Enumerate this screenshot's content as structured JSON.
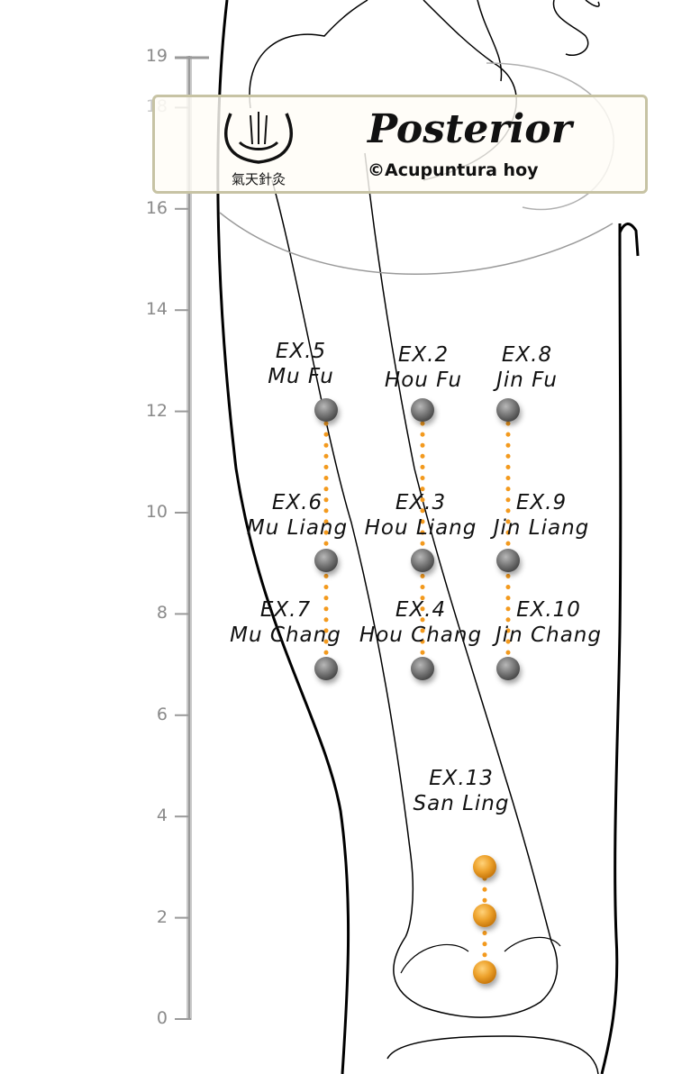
{
  "banner": {
    "title": "Posterior",
    "subtitle": "©Acupuntura hoy",
    "logo_text": "氣天針灸"
  },
  "scale": {
    "ticks": [
      "0",
      "2",
      "4",
      "6",
      "8",
      "10",
      "12",
      "14",
      "16",
      "18",
      "19"
    ]
  },
  "points": [
    {
      "code": "EX.5",
      "name": "Mu Fu",
      "color": "#6b6b6b"
    },
    {
      "code": "EX.2",
      "name": "Hou Fu",
      "color": "#6b6b6b"
    },
    {
      "code": "EX.8",
      "name": "Jin Fu",
      "color": "#6b6b6b"
    },
    {
      "code": "EX.6",
      "name": "Mu Liang",
      "color": "#6b6b6b"
    },
    {
      "code": "EX.3",
      "name": "Hou Liang",
      "color": "#6b6b6b"
    },
    {
      "code": "EX.9",
      "name": "Jin Liang",
      "color": "#6b6b6b"
    },
    {
      "code": "EX.7",
      "name": "Mu Chang",
      "color": "#6b6b6b"
    },
    {
      "code": "EX.4",
      "name": "Hou Chang",
      "color": "#6b6b6b"
    },
    {
      "code": "EX.10",
      "name": "Jin Chang",
      "color": "#6b6b6b"
    },
    {
      "code": "EX.13",
      "name": "San Ling",
      "color": "#e8941c"
    }
  ],
  "colors": {
    "line": "#000000",
    "scale": "#9a9a9a",
    "dotted": "#f39a1e",
    "grey_point": "#6b6b6b",
    "orange_point": "#e8941c"
  }
}
